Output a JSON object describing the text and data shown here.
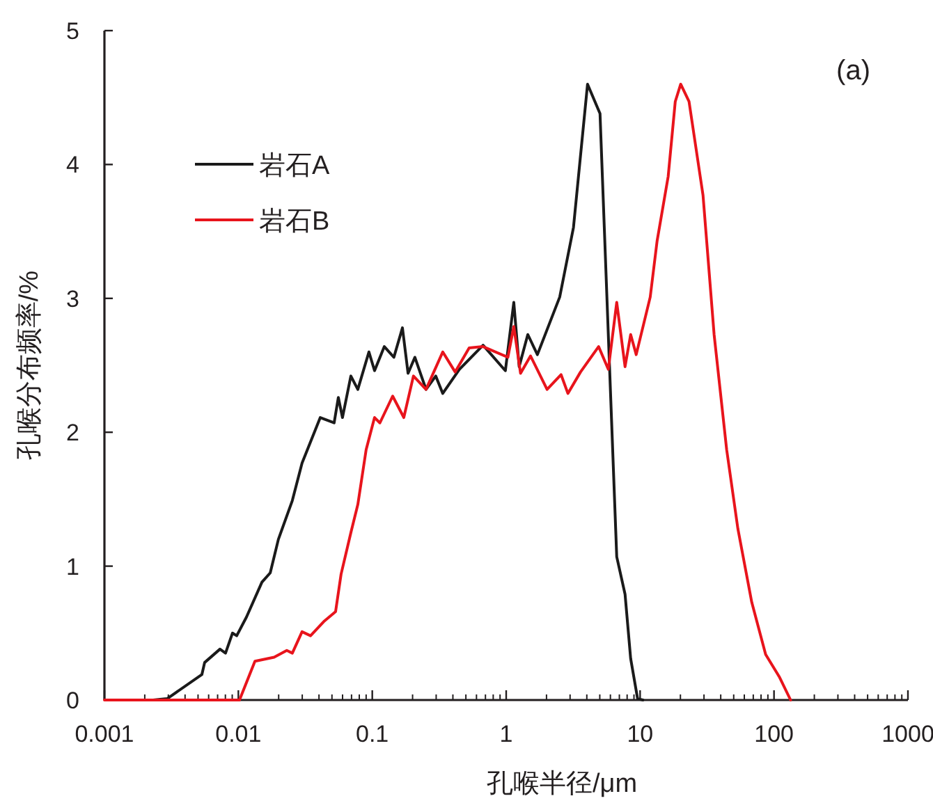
{
  "chart_data": {
    "type": "line",
    "xlabel": "孔喉半径/μm",
    "ylabel": "孔喉分布频率/%",
    "log": "x",
    "xlim": [
      0.001,
      1000
    ],
    "xticks": [
      0.001,
      0.01,
      0.1,
      1,
      10,
      100,
      1000
    ],
    "ylim": [
      0,
      5
    ],
    "yticks": [
      0,
      1,
      2,
      3,
      4,
      5
    ],
    "legend": "top left",
    "annotations": [
      "(a)"
    ],
    "series": [
      {
        "name": "岩石A",
        "color": "#1a1a1a",
        "x": [
          0.00231,
          0.00294,
          0.00534,
          0.0056,
          0.00729,
          0.00802,
          0.00904,
          0.00972,
          0.0115,
          0.015,
          0.0173,
          0.0199,
          0.0253,
          0.0299,
          0.0409,
          0.0519,
          0.0558,
          0.0599,
          0.0692,
          0.078,
          0.0944,
          0.104,
          0.123,
          0.145,
          0.168,
          0.185,
          0.208,
          0.252,
          0.298,
          0.336,
          0.447,
          0.672,
          0.986,
          1.14,
          1.25,
          1.45,
          1.71,
          2.51,
          3.18,
          4.05,
          5.02,
          5.79,
          6.69,
          7.72,
          8.5,
          9.58,
          10.5
        ],
        "values": [
          0,
          0.01,
          0.19,
          0.28,
          0.38,
          0.35,
          0.5,
          0.48,
          0.62,
          0.88,
          0.95,
          1.2,
          1.49,
          1.77,
          2.11,
          2.07,
          2.26,
          2.11,
          2.42,
          2.32,
          2.6,
          2.46,
          2.64,
          2.56,
          2.78,
          2.44,
          2.56,
          2.32,
          2.42,
          2.29,
          2.47,
          2.65,
          2.46,
          2.97,
          2.49,
          2.73,
          2.58,
          3.01,
          3.53,
          4.6,
          4.38,
          2.73,
          1.07,
          0.79,
          0.31,
          0.01,
          0
        ]
      },
      {
        "name": "岩石B",
        "color": "#e8141c",
        "x": [
          0.001,
          0.0102,
          0.0133,
          0.0185,
          0.023,
          0.0253,
          0.0299,
          0.0346,
          0.0439,
          0.0532,
          0.0585,
          0.0692,
          0.078,
          0.09,
          0.104,
          0.114,
          0.142,
          0.172,
          0.203,
          0.252,
          0.336,
          0.416,
          0.529,
          0.672,
          1.03,
          1.14,
          1.28,
          1.52,
          2.02,
          2.57,
          2.89,
          3.59,
          4.9,
          5.79,
          6.69,
          7.72,
          8.5,
          9.35,
          11.9,
          13.4,
          16.2,
          18.3,
          20.1,
          23.2,
          29.5,
          35.7,
          44.3,
          53.7,
          68.2,
          86.6,
          110,
          133
        ],
        "values": [
          0,
          0,
          0.29,
          0.32,
          0.37,
          0.35,
          0.51,
          0.48,
          0.59,
          0.66,
          0.94,
          1.25,
          1.46,
          1.87,
          2.11,
          2.07,
          2.27,
          2.11,
          2.42,
          2.32,
          2.6,
          2.45,
          2.63,
          2.64,
          2.56,
          2.79,
          2.44,
          2.57,
          2.32,
          2.43,
          2.29,
          2.45,
          2.64,
          2.47,
          2.97,
          2.49,
          2.73,
          2.58,
          3.01,
          3.43,
          3.91,
          4.47,
          4.6,
          4.47,
          3.77,
          2.73,
          1.87,
          1.28,
          0.73,
          0.34,
          0.17,
          0
        ]
      }
    ]
  }
}
